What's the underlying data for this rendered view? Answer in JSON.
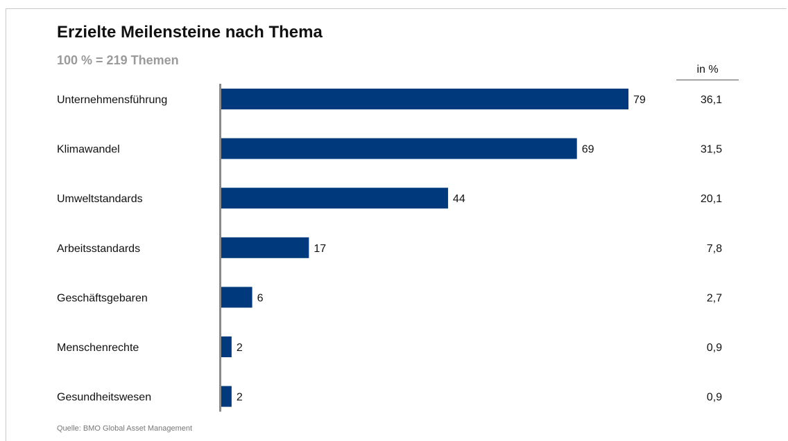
{
  "chart_data": {
    "type": "bar",
    "orientation": "horizontal",
    "title": "Erzielte Meilensteine nach Thema",
    "subtitle": "100 % = 219 Themen",
    "categories": [
      "Unternehmensführung",
      "Klimawandel",
      "Umweltstandards",
      "Arbeitsstandards",
      "Geschäftsgebaren",
      "Menschenrechte",
      "Gesundheitswesen"
    ],
    "values": [
      79,
      69,
      44,
      17,
      6,
      2,
      2
    ],
    "value_labels": [
      "79",
      "69",
      "44",
      "17",
      "6",
      "2",
      "2"
    ],
    "percent_header": "in %",
    "percent_labels": [
      "36,1",
      "31,5",
      "20,1",
      "7,8",
      "2,7",
      "0,9",
      "0,9"
    ],
    "xlim": [
      0,
      79
    ],
    "grid": false,
    "bar_color": "#003a7d",
    "source": "Quelle: BMO Global Asset Management"
  }
}
